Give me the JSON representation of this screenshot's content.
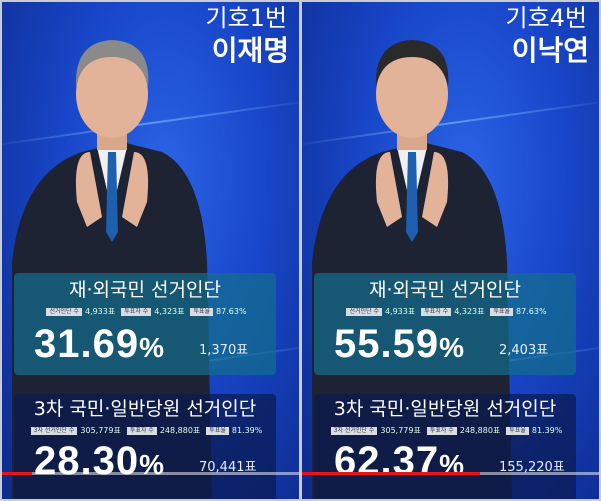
{
  "candidates": [
    {
      "number": "기호1번",
      "name": "이재명",
      "overseas": {
        "title": "재·외국민  선거인단",
        "stats": [
          {
            "label": "선거인단 수",
            "value": "4,933표"
          },
          {
            "label": "투표자 수",
            "value": "4,323표"
          },
          {
            "label": "투표율",
            "value": "87.63%"
          }
        ],
        "percent": "31.69",
        "votes": "1,370표"
      },
      "general": {
        "title": "3차 국민·일반당원 선거인단",
        "stats": [
          {
            "label": "3차 선거인단 수",
            "value": "305,779표"
          },
          {
            "label": "투표자 수",
            "value": "248,880표"
          },
          {
            "label": "투표율",
            "value": "81.39%"
          }
        ],
        "percent": "28.30",
        "votes": "70,441표"
      },
      "video_progress": 0.1
    },
    {
      "number": "기호4번",
      "name": "이낙연",
      "overseas": {
        "title": "재·외국민  선거인단",
        "stats": [
          {
            "label": "선거인단 수",
            "value": "4,933표"
          },
          {
            "label": "투표자 수",
            "value": "4,323표"
          },
          {
            "label": "투표율",
            "value": "87.63%"
          }
        ],
        "percent": "55.59",
        "votes": "2,403표"
      },
      "general": {
        "title": "3차 국민·일반당원 선거인단",
        "stats": [
          {
            "label": "3차 선거인단 수",
            "value": "305,779표"
          },
          {
            "label": "투표자 수",
            "value": "248,880표"
          },
          {
            "label": "투표율",
            "value": "81.39%"
          }
        ],
        "percent": "62.37",
        "votes": "155,220표"
      },
      "video_progress": 0.6
    }
  ],
  "percent_sign": "%",
  "colors": {
    "background": "#1846c8",
    "progress": "#e4151b"
  }
}
